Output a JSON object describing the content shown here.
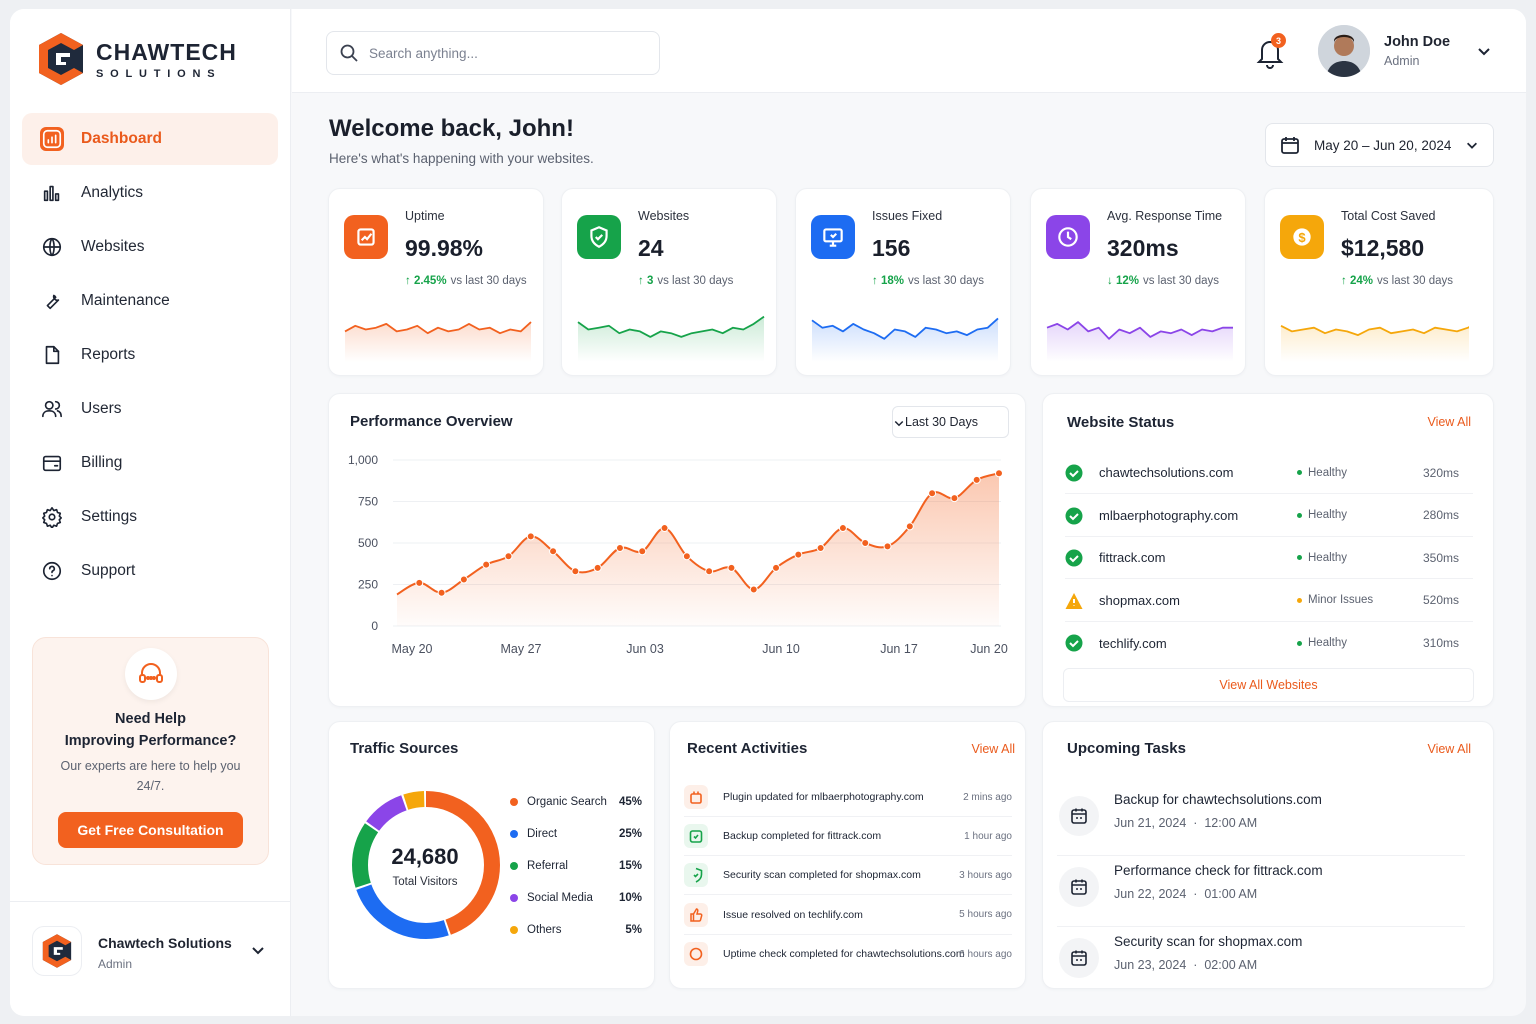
{
  "brand": {
    "name": "CHAWTECH",
    "tagline": "SOLUTIONS",
    "accent": "#f2611f"
  },
  "sidebar": {
    "items": [
      {
        "label": "Dashboard",
        "icon": "chart-box-icon",
        "active": true
      },
      {
        "label": "Analytics",
        "icon": "bar-chart-icon"
      },
      {
        "label": "Websites",
        "icon": "globe-icon"
      },
      {
        "label": "Maintenance",
        "icon": "wrench-icon"
      },
      {
        "label": "Reports",
        "icon": "file-icon"
      },
      {
        "label": "Users",
        "icon": "users-icon"
      },
      {
        "label": "Billing",
        "icon": "wallet-icon"
      },
      {
        "label": "Settings",
        "icon": "gear-icon"
      },
      {
        "label": "Support",
        "icon": "help-circle-icon"
      }
    ],
    "help": {
      "title1": "Need Help",
      "title2": "Improving Performance?",
      "text": "Our experts are here to help you 24/7.",
      "button": "Get Free Consultation"
    },
    "company": {
      "name": "Chawtech Solutions",
      "role": "Admin"
    }
  },
  "topbar": {
    "search_placeholder": "Search anything...",
    "notifications": "3",
    "user": {
      "name": "John Doe",
      "role": "Admin"
    }
  },
  "header": {
    "welcome": "Welcome back, John!",
    "subtitle": "Here's what's happening with your websites.",
    "date_range": "May 20 – Jun 20, 2024"
  },
  "kpis": [
    {
      "label": "Uptime",
      "value": "99.98%",
      "change": "2.45%",
      "dir": "up",
      "suffix": "vs last 30 days",
      "color": "#f2611f",
      "icon": "uptime-chart-icon",
      "spark": [
        0.55,
        0.4,
        0.5,
        0.45,
        0.35,
        0.55,
        0.5,
        0.4,
        0.6,
        0.45,
        0.55,
        0.5,
        0.35,
        0.5,
        0.45,
        0.6,
        0.5,
        0.55,
        0.3
      ]
    },
    {
      "label": "Websites",
      "value": "24",
      "change": "3",
      "dir": "up",
      "suffix": "vs last 30 days",
      "color": "#16a34a",
      "icon": "shield-check-icon",
      "spark": [
        0.3,
        0.5,
        0.45,
        0.4,
        0.6,
        0.5,
        0.55,
        0.7,
        0.55,
        0.6,
        0.7,
        0.6,
        0.55,
        0.5,
        0.6,
        0.45,
        0.5,
        0.35,
        0.15
      ]
    },
    {
      "label": "Issues Fixed",
      "value": "156",
      "change": "18%",
      "dir": "up",
      "suffix": "vs last 30 days",
      "color": "#1d6cf2",
      "icon": "monitor-icon",
      "spark": [
        0.25,
        0.45,
        0.4,
        0.55,
        0.35,
        0.5,
        0.6,
        0.75,
        0.5,
        0.55,
        0.7,
        0.45,
        0.5,
        0.6,
        0.55,
        0.65,
        0.5,
        0.45,
        0.2
      ]
    },
    {
      "label": "Avg. Response Time",
      "value": "320ms",
      "change": "12%",
      "dir": "down",
      "suffix": "vs last 30 days",
      "color": "#8b45e8",
      "icon": "clock-icon",
      "spark": [
        0.45,
        0.35,
        0.5,
        0.3,
        0.55,
        0.45,
        0.75,
        0.5,
        0.6,
        0.45,
        0.7,
        0.55,
        0.6,
        0.5,
        0.65,
        0.5,
        0.55,
        0.45,
        0.45
      ]
    },
    {
      "label": "Total Cost Saved",
      "value": "$12,580",
      "change": "24%",
      "dir": "up",
      "suffix": "vs last 30 days",
      "color": "#f5a70b",
      "icon": "dollar-icon",
      "spark": [
        0.4,
        0.55,
        0.5,
        0.45,
        0.6,
        0.5,
        0.55,
        0.65,
        0.5,
        0.45,
        0.6,
        0.55,
        0.5,
        0.6,
        0.45,
        0.5,
        0.55,
        0.45,
        0.3
      ]
    }
  ],
  "performance": {
    "title": "Performance Overview",
    "range": "Last 30 Days"
  },
  "chart_data": {
    "type": "area",
    "yticks": [
      "1,000",
      "750",
      "500",
      "250",
      "0"
    ],
    "ylim": [
      0,
      1000
    ],
    "xticks": [
      "May 20",
      "May 27",
      "Jun 03",
      "Jun 10",
      "Jun 17",
      "Jun 20"
    ],
    "values": [
      190,
      260,
      200,
      280,
      370,
      420,
      540,
      450,
      330,
      350,
      470,
      450,
      590,
      420,
      330,
      350,
      220,
      350,
      430,
      470,
      590,
      500,
      480,
      600,
      800,
      770,
      880,
      920
    ],
    "color": "#f2611f"
  },
  "website_status": {
    "title": "Website Status",
    "view_all": "View All",
    "button": "View All Websites",
    "rows": [
      {
        "domain": "chawtechsolutions.com",
        "status": "Healthy",
        "ms": "320ms",
        "ok": true
      },
      {
        "domain": "mlbaerphotography.com",
        "status": "Healthy",
        "ms": "280ms",
        "ok": true
      },
      {
        "domain": "fittrack.com",
        "status": "Healthy",
        "ms": "350ms",
        "ok": true
      },
      {
        "domain": "shopmax.com",
        "status": "Minor Issues",
        "ms": "520ms",
        "ok": false
      },
      {
        "domain": "techlify.com",
        "status": "Healthy",
        "ms": "310ms",
        "ok": true
      }
    ]
  },
  "traffic": {
    "title": "Traffic Sources",
    "total": "24,680",
    "total_label": "Total Visitors",
    "sources": [
      {
        "name": "Organic Search",
        "pct": "45%",
        "value": 45,
        "color": "#f2611f"
      },
      {
        "name": "Direct",
        "pct": "25%",
        "value": 25,
        "color": "#1d6cf2"
      },
      {
        "name": "Referral",
        "pct": "15%",
        "value": 15,
        "color": "#16a34a"
      },
      {
        "name": "Social Media",
        "pct": "10%",
        "value": 10,
        "color": "#8b45e8"
      },
      {
        "name": "Others",
        "pct": "5%",
        "value": 5,
        "color": "#f5a70b"
      }
    ]
  },
  "activities": {
    "title": "Recent Activities",
    "view_all": "View All",
    "rows": [
      {
        "text": "Plugin updated for mlbaerphotography.com",
        "time": "2 mins ago",
        "color": "#f2611f",
        "icon": "plugin-icon"
      },
      {
        "text": "Backup completed for fittrack.com",
        "time": "1 hour ago",
        "color": "#16a34a",
        "icon": "backup-icon"
      },
      {
        "text": "Security scan completed for shopmax.com",
        "time": "3 hours ago",
        "color": "#16a34a",
        "icon": "shield-icon"
      },
      {
        "text": "Issue resolved on techlify.com",
        "time": "5 hours ago",
        "color": "#f2611f",
        "icon": "thumb-up-icon"
      },
      {
        "text": "Uptime check completed for chawtechsolutions.com",
        "time": "6 hours ago",
        "color": "#f2611f",
        "icon": "circle-check-icon"
      }
    ]
  },
  "tasks": {
    "title": "Upcoming Tasks",
    "view_all": "View All",
    "rows": [
      {
        "title": "Backup for chawtechsolutions.com",
        "date": "Jun 21, 2024",
        "time": "12:00 AM"
      },
      {
        "title": "Performance check for fittrack.com",
        "date": "Jun 22, 2024",
        "time": "01:00 AM"
      },
      {
        "title": "Security scan for shopmax.com",
        "date": "Jun 23, 2024",
        "time": "02:00 AM"
      }
    ]
  }
}
